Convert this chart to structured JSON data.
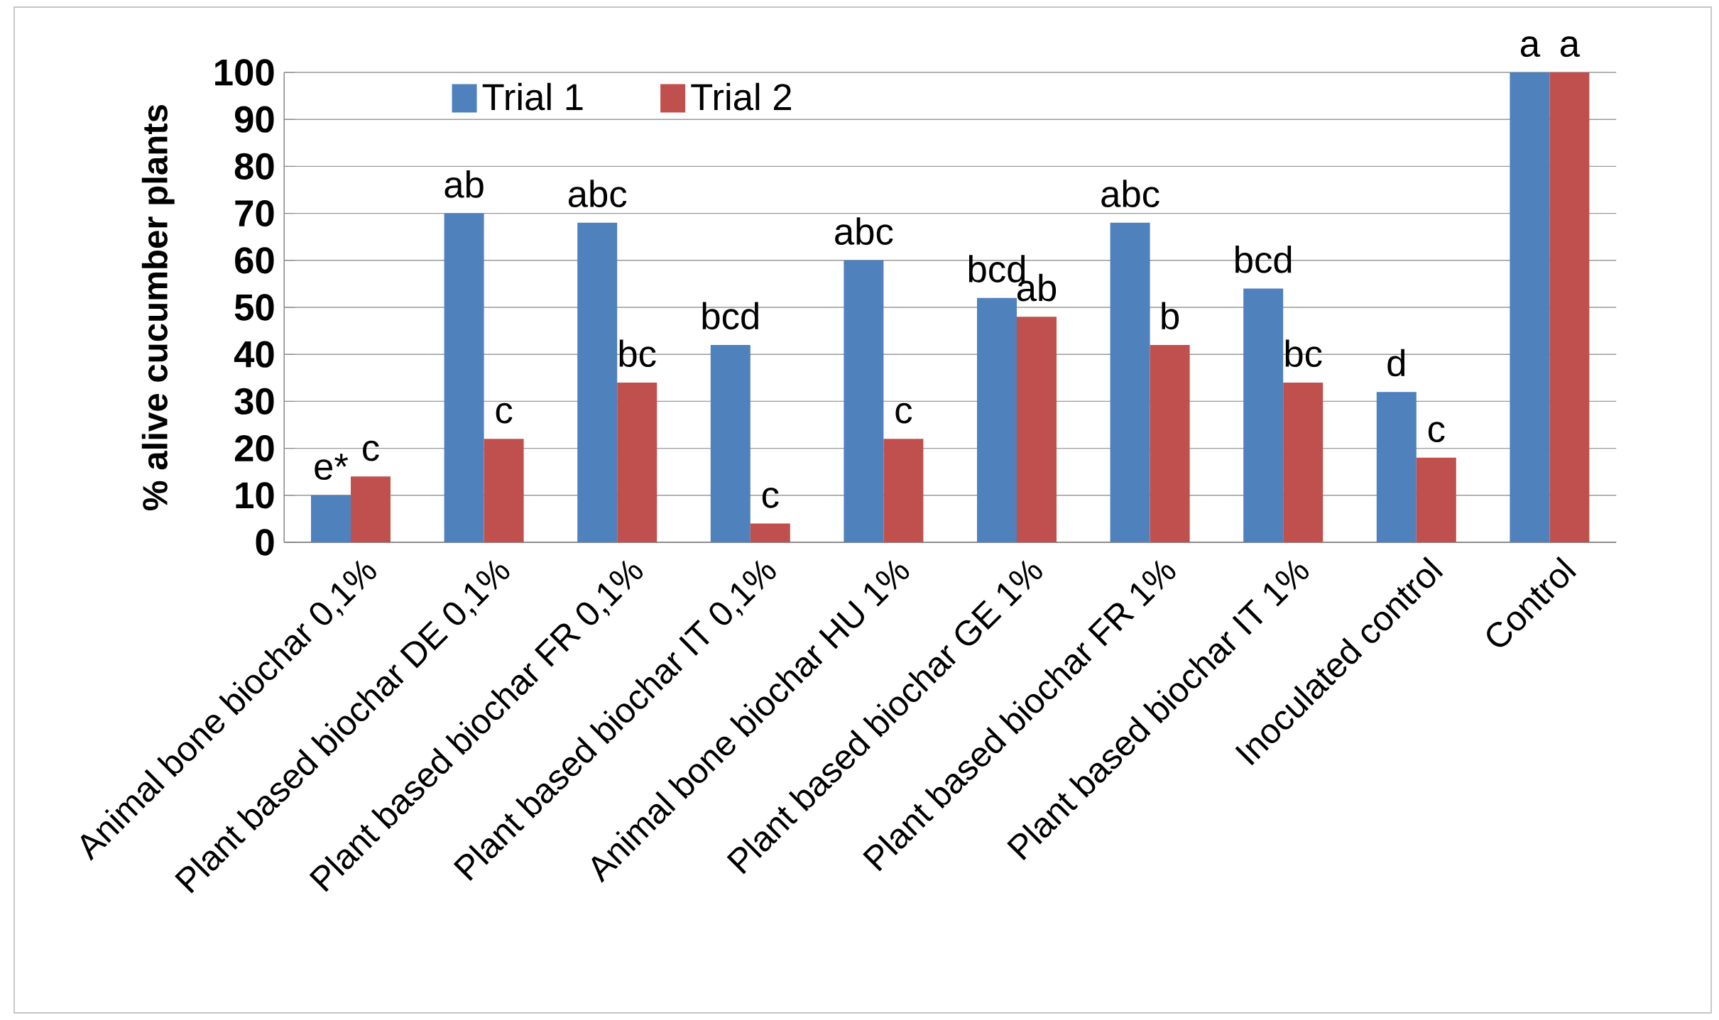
{
  "chart_data": {
    "type": "bar",
    "ylabel": "% alive cucumber plants",
    "categories": [
      "Animal bone biochar 0,1%",
      "Plant based biochar DE 0,1%",
      "Plant based biochar FR 0,1%",
      "Plant based biochar IT 0,1%",
      "Animal bone biochar HU 1%",
      "Plant based biochar GE 1%",
      "Plant based biochar FR 1%",
      "Plant based biochar IT 1%",
      "Inoculated control",
      "Control"
    ],
    "series": [
      {
        "name": "Trial 1",
        "color": "#4f81bd",
        "values": [
          10,
          70,
          68,
          42,
          60,
          52,
          68,
          54,
          32,
          100
        ]
      },
      {
        "name": "Trial 2",
        "color": "#c0504d",
        "values": [
          14,
          22,
          34,
          4,
          22,
          48,
          42,
          34,
          18,
          100
        ]
      }
    ],
    "ylim": [
      0,
      100
    ],
    "yticks": [
      0,
      10,
      20,
      30,
      40,
      50,
      60,
      70,
      80,
      90,
      100
    ],
    "grid": "y",
    "legend": "top left",
    "annotations": [
      "e*",
      "c",
      "ab",
      "c",
      "abc",
      "bc",
      "bcd",
      "c",
      "abc",
      "c",
      "bcd",
      "ab",
      "abc",
      "b",
      "bcd",
      "bc",
      "d",
      "c",
      "a",
      "a"
    ]
  }
}
